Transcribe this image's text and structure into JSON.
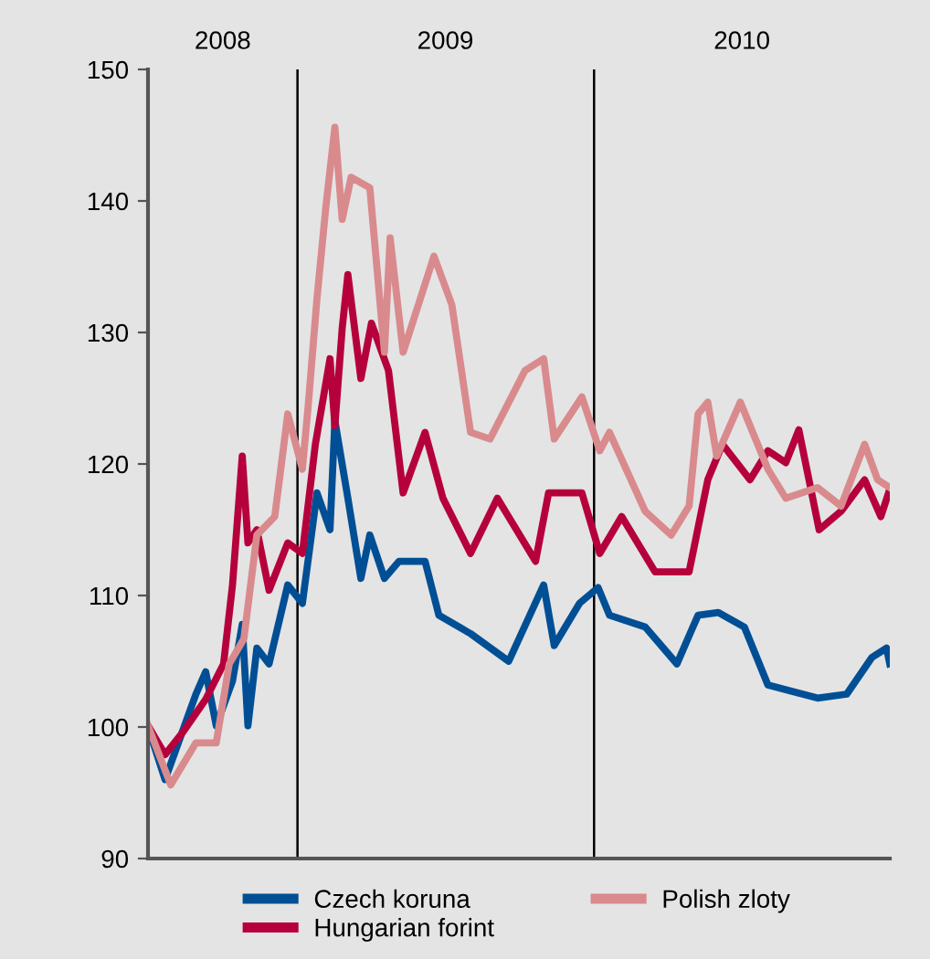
{
  "chart_data": {
    "type": "line",
    "xlim": [
      "2008-07-01",
      "2010-12-31"
    ],
    "xticks": [
      {
        "value": "2008-10-01",
        "label": "2008"
      },
      {
        "value": "2009-07-02",
        "label": "2009"
      },
      {
        "value": "2010-07-02",
        "label": "2010"
      }
    ],
    "ylim": [
      90,
      150
    ],
    "yticks": [
      90,
      100,
      110,
      120,
      130,
      140,
      150
    ],
    "grid": false,
    "legend": "bottom",
    "marker": "none",
    "line_style": "solid",
    "ref_lines": [
      {
        "axis": "x",
        "value": "2009-01-01",
        "color": "#000000"
      },
      {
        "axis": "x",
        "value": "2010-01-01",
        "color": "#000000"
      }
    ],
    "series": [
      {
        "name": "Czech koruna",
        "color": "#004f95",
        "x": [
          "2008-07-01",
          "2008-07-22",
          "2008-08-29",
          "2008-09-10",
          "2008-09-23",
          "2008-10-13",
          "2008-10-25",
          "2008-11-01",
          "2008-11-12",
          "2008-11-27",
          "2008-12-20",
          "2009-01-07",
          "2009-01-25",
          "2009-02-10",
          "2009-02-16",
          "2009-03-04",
          "2009-03-20",
          "2009-03-31",
          "2009-04-18",
          "2009-05-06",
          "2009-06-07",
          "2009-06-24",
          "2009-08-02",
          "2009-09-18",
          "2009-10-31",
          "2009-11-13",
          "2009-12-14",
          "2010-01-06",
          "2010-01-20",
          "2010-03-05",
          "2010-04-13",
          "2010-05-09",
          "2010-06-03",
          "2010-07-05",
          "2010-08-03",
          "2010-10-03",
          "2010-11-08",
          "2010-12-09",
          "2010-12-27",
          "2010-12-31"
        ],
        "values": [
          100,
          96,
          102.5,
          104.2,
          100.1,
          103.5,
          107.8,
          100.1,
          106,
          104.8,
          110.8,
          109.4,
          117.8,
          115,
          123.3,
          117.4,
          111.3,
          114.6,
          111.3,
          112.6,
          112.6,
          108.5,
          107.1,
          105,
          110.8,
          106.2,
          109.4,
          110.6,
          108.5,
          107.6,
          104.8,
          108.5,
          108.7,
          107.6,
          103.2,
          102.2,
          102.5,
          105.3,
          106,
          104.8
        ]
      },
      {
        "name": "Hungarian forint",
        "color": "#b5003c",
        "x": [
          "2008-07-01",
          "2008-07-22",
          "2008-08-14",
          "2008-09-10",
          "2008-10-02",
          "2008-10-13",
          "2008-10-25",
          "2008-11-01",
          "2008-11-12",
          "2008-11-27",
          "2008-12-20",
          "2009-01-07",
          "2009-01-23",
          "2009-02-10",
          "2009-02-16",
          "2009-02-25",
          "2009-03-04",
          "2009-03-20",
          "2009-04-02",
          "2009-04-23",
          "2009-05-11",
          "2009-06-07",
          "2009-06-29",
          "2009-08-02",
          "2009-09-04",
          "2009-10-21",
          "2009-11-06",
          "2009-12-17",
          "2010-01-08",
          "2010-02-04",
          "2010-03-17",
          "2010-04-28",
          "2010-05-21",
          "2010-06-08",
          "2010-07-12",
          "2010-08-03",
          "2010-08-25",
          "2010-09-10",
          "2010-10-05",
          "2010-11-01",
          "2010-11-30",
          "2010-12-20",
          "2010-12-31"
        ],
        "values": [
          100.1,
          97.9,
          99.7,
          102.1,
          104.8,
          110.8,
          120.6,
          114,
          115,
          110.4,
          114,
          113.2,
          121.5,
          128,
          122.9,
          130.3,
          134.4,
          126.5,
          130.7,
          127.1,
          117.8,
          122.4,
          117.4,
          113.2,
          117.4,
          112.6,
          117.8,
          117.8,
          113.2,
          116,
          111.8,
          111.8,
          118.8,
          121.5,
          118.8,
          121,
          120.1,
          122.6,
          115,
          116.4,
          118.8,
          116,
          118.1
        ]
      },
      {
        "name": "Polish zloty",
        "color": "#d98a8d",
        "x": [
          "2008-07-01",
          "2008-07-29",
          "2008-08-29",
          "2008-09-23",
          "2008-10-09",
          "2008-10-27",
          "2008-11-12",
          "2008-12-04",
          "2008-12-20",
          "2009-01-07",
          "2009-01-14",
          "2009-01-25",
          "2009-02-05",
          "2009-02-16",
          "2009-02-25",
          "2009-03-08",
          "2009-03-31",
          "2009-04-18",
          "2009-04-25",
          "2009-05-11",
          "2009-06-18",
          "2009-07-10",
          "2009-08-02",
          "2009-08-26",
          "2009-10-08",
          "2009-10-31",
          "2009-11-13",
          "2009-12-17",
          "2010-01-08",
          "2010-01-20",
          "2010-03-05",
          "2010-04-06",
          "2010-04-28",
          "2010-05-09",
          "2010-05-21",
          "2010-06-01",
          "2010-06-30",
          "2010-08-03",
          "2010-08-25",
          "2010-10-03",
          "2010-11-01",
          "2010-11-30",
          "2010-12-16",
          "2010-12-31"
        ],
        "values": [
          100.1,
          95.6,
          98.8,
          98.8,
          104.8,
          106.7,
          114.6,
          116,
          123.8,
          119.6,
          124.3,
          132.6,
          139.6,
          145.6,
          138.6,
          141.8,
          141,
          128.5,
          137.2,
          128.5,
          135.8,
          132.1,
          122.4,
          121.9,
          127.1,
          128,
          121.9,
          125.1,
          121,
          122.4,
          116.4,
          114.6,
          116.8,
          123.8,
          124.7,
          120.6,
          124.7,
          119.6,
          117.4,
          118.2,
          116.8,
          121.5,
          118.8,
          118.2
        ]
      }
    ]
  }
}
